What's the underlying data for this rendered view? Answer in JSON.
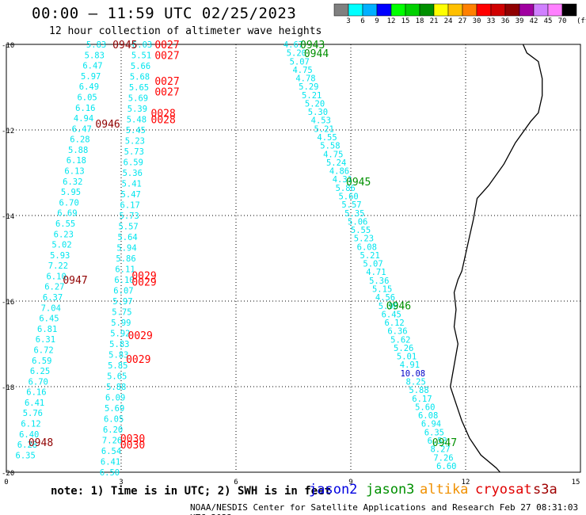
{
  "chart_data": {
    "type": "scatter",
    "title": "00:00 – 11:59 UTC 02/25/2023",
    "subtitle": "12 hour collection of altimeter wave heights",
    "note": "note: 1) Time is in UTC; 2) SWH is in feet",
    "footer": "NOAA/NESDIS Center for Satellite Applications and Research   Feb 27 08:31:03 UTC 2023",
    "xlim": [
      0,
      15
    ],
    "ylim": [
      -20,
      -10
    ],
    "x_ticks": [
      "0",
      "3",
      "6",
      "9",
      "12",
      "15"
    ],
    "y_ticks": [
      "-10",
      "-12",
      "-14",
      "-16",
      "-18",
      "-20"
    ],
    "grid": true,
    "colorbar": {
      "unit": "(ft)",
      "labels": [
        "3",
        "6",
        "9",
        "12",
        "15",
        "18",
        "21",
        "24",
        "27",
        "30",
        "33",
        "36",
        "39",
        "42",
        "45",
        "70"
      ],
      "colors": [
        "#808080",
        "#00ffff",
        "#00b0ff",
        "#0000ff",
        "#00ff00",
        "#00d000",
        "#009000",
        "#ffff00",
        "#ffc000",
        "#ff8000",
        "#ff0000",
        "#d00000",
        "#900000",
        "#a000a0",
        "#d080ff",
        "#ff80ff",
        "#000000"
      ]
    },
    "legend": [
      {
        "name": "jason2",
        "color": "#0000e0"
      },
      {
        "name": "jason3",
        "color": "#009000"
      },
      {
        "name": "altika",
        "color": "#f09000"
      },
      {
        "name": "cryosat",
        "color": "#e00000"
      },
      {
        "name": "s3a",
        "color": "#a00000"
      }
    ],
    "coastline": [
      [
        13.5,
        -10.0
      ],
      [
        13.6,
        -10.2
      ],
      [
        13.9,
        -10.4
      ],
      [
        14.0,
        -10.8
      ],
      [
        14.0,
        -11.2
      ],
      [
        13.9,
        -11.6
      ],
      [
        13.7,
        -11.8
      ],
      [
        13.3,
        -12.3
      ],
      [
        13.0,
        -12.8
      ],
      [
        12.6,
        -13.3
      ],
      [
        12.3,
        -13.6
      ],
      [
        12.2,
        -14.1
      ],
      [
        12.1,
        -14.5
      ],
      [
        12.0,
        -14.9
      ],
      [
        11.9,
        -15.3
      ],
      [
        11.8,
        -15.5
      ],
      [
        11.7,
        -15.8
      ],
      [
        11.75,
        -16.2
      ],
      [
        11.7,
        -16.6
      ],
      [
        11.8,
        -17.0
      ],
      [
        11.7,
        -17.5
      ],
      [
        11.6,
        -18.0
      ],
      [
        11.75,
        -18.4
      ],
      [
        11.9,
        -18.8
      ],
      [
        12.1,
        -19.2
      ],
      [
        12.4,
        -19.6
      ],
      [
        12.8,
        -19.9
      ],
      [
        12.9,
        -20.0
      ]
    ],
    "tracks": [
      {
        "color": "#00e5ee",
        "lon_start": 2.35,
        "lon_end": 0.5,
        "lat_start": -10.0,
        "lat_end": -19.6,
        "values": [
          "5.83",
          "5.83",
          "6.47",
          "5.97",
          "6.49",
          "6.05",
          "6.16",
          "4.94",
          "6.47",
          "6.28",
          "5.88",
          "6.18",
          "6.13",
          "6.32",
          "5.95",
          "6.70",
          "6.69",
          "6.55",
          "6.23",
          "5.02",
          "5.93",
          "7.22",
          "6.10",
          "6.27",
          "6.37",
          "7.04",
          "6.45",
          "6.81",
          "6.31",
          "6.72",
          "6.59",
          "6.25",
          "6.70",
          "6.16",
          "6.41",
          "5.76",
          "6.12",
          "6.40",
          "6.28",
          "6.35"
        ]
      },
      {
        "color": "#00e5ee",
        "lon_start": 3.55,
        "lon_end": 2.7,
        "lat_start": -10.0,
        "lat_end": -20.0,
        "values": [
          "6.03",
          "5.51",
          "5.66",
          "5.68",
          "5.65",
          "5.69",
          "5.39",
          "5.48",
          "5.45",
          "5.23",
          "5.73",
          "6.59",
          "5.36",
          "5.41",
          "5.47",
          "6.17",
          "5.73",
          "5.57",
          "5.64",
          "5.94",
          "5.86",
          "6.11",
          "6.10",
          "6.07",
          "5.97",
          "5.75",
          "5.99",
          "5.92",
          "5.83",
          "5.83",
          "5.85",
          "5.65",
          "5.88",
          "6.09",
          "5.69",
          "6.05",
          "6.20",
          "7.26",
          "6.54",
          "6.41",
          "6.50"
        ]
      },
      {
        "color": "#00e5ee",
        "lon_start": 7.5,
        "lon_end": 11.5,
        "lat_start": -10.0,
        "lat_end": -19.85,
        "values": [
          "4.67",
          "5.20",
          "5.07",
          "4.75",
          "4.78",
          "5.29",
          "5.21",
          "5.20",
          "5.30",
          "4.53",
          "5.21",
          "4.55",
          "5.58",
          "4.75",
          "5.24",
          "4.86",
          "4.31",
          "5.86",
          "5.60",
          "5.57",
          "5.35",
          "5.06",
          "5.55",
          "5.23",
          "6.08",
          "5.21",
          "5.07",
          "4.71",
          "5.36",
          "5.15",
          "4.56",
          "5.98",
          "6.45",
          "6.12",
          "6.36",
          "5.62",
          "5.26",
          "5.01",
          "4.91",
          "10.08",
          "8.25",
          "5.88",
          "6.17",
          "5.60",
          "6.08",
          "6.94",
          "6.35",
          "6.53",
          "8.27",
          "7.26",
          "6.60"
        ]
      }
    ],
    "time_labels": [
      {
        "text": "0945",
        "lon": 3.1,
        "lat": -10.0,
        "color": "#900000"
      },
      {
        "text": "0027",
        "lon": 4.2,
        "lat": -10.0,
        "color": "#ff0000"
      },
      {
        "text": "0027",
        "lon": 4.2,
        "lat": -10.25,
        "color": "#ff0000"
      },
      {
        "text": "0027",
        "lon": 4.2,
        "lat": -10.85,
        "color": "#ff0000"
      },
      {
        "text": "0027",
        "lon": 4.2,
        "lat": -11.1,
        "color": "#ff0000"
      },
      {
        "text": "0028",
        "lon": 4.1,
        "lat": -11.6,
        "color": "#ff0000"
      },
      {
        "text": "0028",
        "lon": 4.1,
        "lat": -11.75,
        "color": "#ff0000"
      },
      {
        "text": "0946",
        "lon": 2.65,
        "lat": -11.85,
        "color": "#900000"
      },
      {
        "text": "0029",
        "lon": 3.6,
        "lat": -15.4,
        "color": "#ff0000"
      },
      {
        "text": "0029",
        "lon": 3.6,
        "lat": -15.55,
        "color": "#ff0000"
      },
      {
        "text": "0947",
        "lon": 1.8,
        "lat": -15.5,
        "color": "#900000"
      },
      {
        "text": "0029",
        "lon": 3.5,
        "lat": -16.8,
        "color": "#ff0000"
      },
      {
        "text": "0029",
        "lon": 3.45,
        "lat": -17.35,
        "color": "#ff0000"
      },
      {
        "text": "0030",
        "lon": 3.3,
        "lat": -19.2,
        "color": "#ff0000"
      },
      {
        "text": "0030",
        "lon": 3.3,
        "lat": -19.35,
        "color": "#ff0000"
      },
      {
        "text": "0948",
        "lon": 0.9,
        "lat": -19.3,
        "color": "#900000"
      },
      {
        "text": "0943",
        "lon": 8.0,
        "lat": -10.0,
        "color": "#009000"
      },
      {
        "text": "0944",
        "lon": 8.1,
        "lat": -10.2,
        "color": "#009000"
      },
      {
        "text": "0945",
        "lon": 9.2,
        "lat": -13.2,
        "color": "#009000"
      },
      {
        "text": "0946",
        "lon": 10.25,
        "lat": -16.1,
        "color": "#009000"
      },
      {
        "text": "0947",
        "lon": 11.45,
        "lat": -19.3,
        "color": "#009000"
      }
    ]
  }
}
